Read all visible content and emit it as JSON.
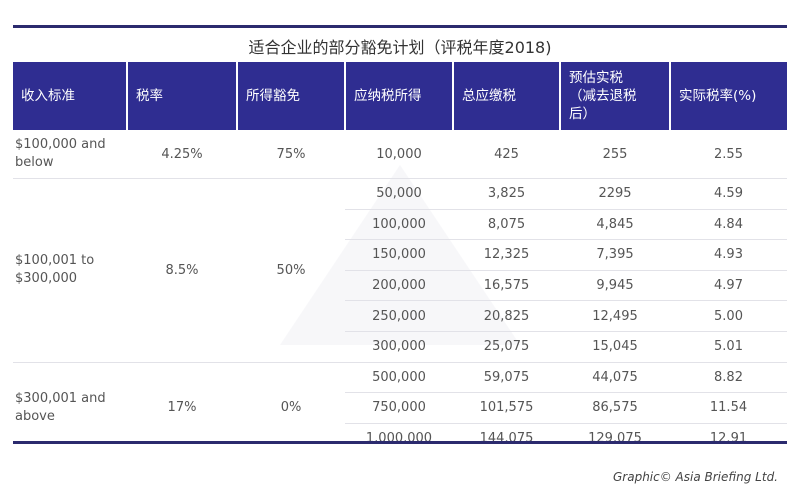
{
  "title": "适合企业的部分豁免计划（评税年度2018)",
  "headers": [
    "收入标准",
    "税率",
    "所得豁免",
    "应纳税所得",
    "总应缴税",
    "预估实税（减去退税后）",
    "实际税率(%)"
  ],
  "groups": [
    {
      "bracket": "$100,000 and below",
      "rate": "4.25%",
      "exemption": "75%",
      "rows": [
        [
          "10,000",
          "425",
          "255",
          "2.55"
        ]
      ]
    },
    {
      "bracket": "$100,001 to $300,000",
      "rate": "8.5%",
      "exemption": "50%",
      "rows": [
        [
          "50,000",
          "3,825",
          "2295",
          "4.59"
        ],
        [
          "100,000",
          "8,075",
          "4,845",
          "4.84"
        ],
        [
          "150,000",
          "12,325",
          "7,395",
          "4.93"
        ],
        [
          "200,000",
          "16,575",
          "9,945",
          "4.97"
        ],
        [
          "250,000",
          "20,825",
          "12,495",
          "5.00"
        ],
        [
          "300,000",
          "25,075",
          "15,045",
          "5.01"
        ]
      ]
    },
    {
      "bracket": "$300,001 and above",
      "rate": "17%",
      "exemption": "0%",
      "rows": [
        [
          "500,000",
          "59,075",
          "44,075",
          "8.82"
        ],
        [
          "750,000",
          "101,575",
          "86,575",
          "11.54"
        ],
        [
          "1,000,000",
          "144,075",
          "129,075",
          "12.91"
        ]
      ]
    }
  ],
  "footer": "Graphic© Asia Briefing Ltd.",
  "colors": {
    "header": "#2f2d91",
    "rule": "#2b2a6e"
  }
}
